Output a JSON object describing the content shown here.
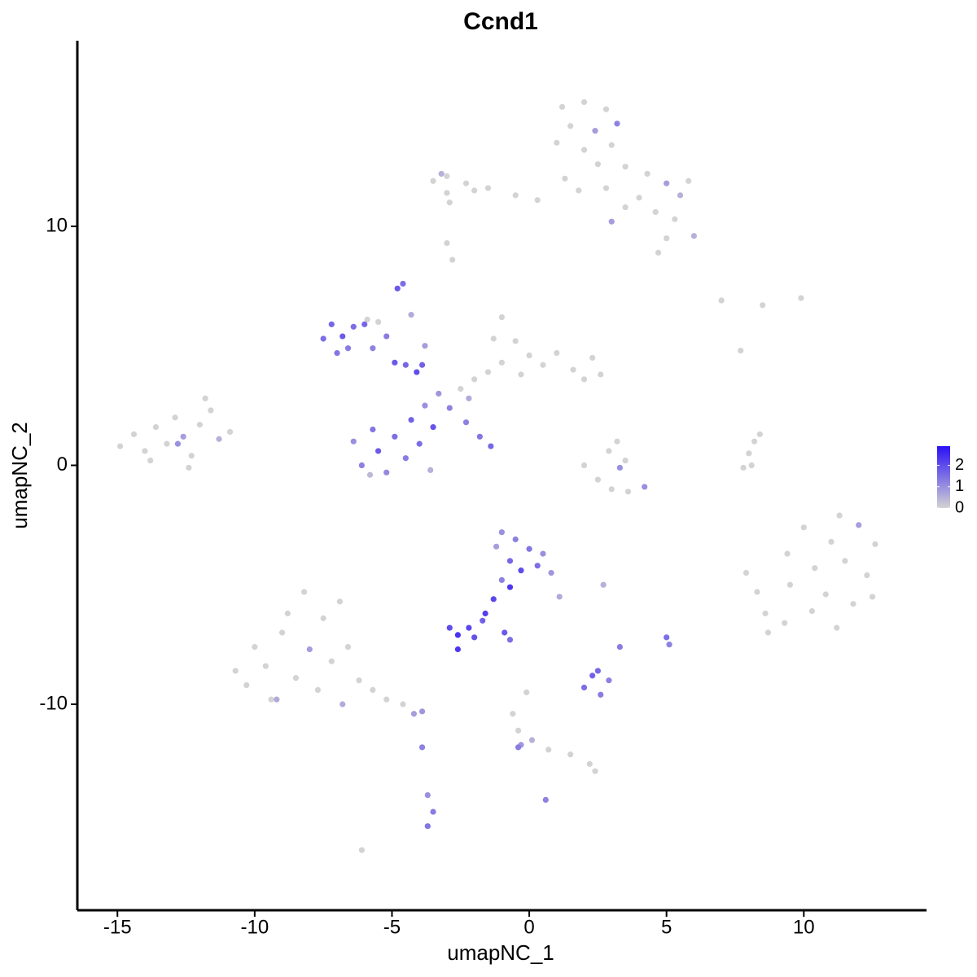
{
  "chart_data": {
    "type": "scatter",
    "title": "Ccnd1",
    "x_label": "umapNC_1",
    "y_label": "umapNC_2",
    "xlim": [
      -16.46,
      14.47
    ],
    "ylim": [
      -18.62,
      17.77
    ],
    "xticks": [
      -15,
      -10,
      -5,
      0,
      5,
      10
    ],
    "yticks": [
      -10,
      0,
      10
    ],
    "grid": false,
    "color_low": "#d3d3d3",
    "color_high": "#2b10f6",
    "color_limits": [
      0,
      2.9
    ],
    "color_ticks": [
      0,
      1,
      2
    ],
    "x": [
      1.2,
      2.0,
      2.8,
      1.5,
      2.4,
      3.2,
      1.0,
      2.0,
      3.0,
      2.5,
      3.5,
      4.3,
      5.0,
      5.8,
      1.3,
      1.8,
      2.8,
      4.0,
      5.5,
      4.6,
      5.3,
      6.0,
      5.0,
      4.7,
      3.0,
      3.5,
      0.3,
      -0.5,
      -1.5,
      -2.3,
      -3.0,
      -3.5,
      -3.0,
      -2.0,
      -3.2,
      -2.9,
      -3.0,
      -2.8,
      -14.9,
      -14.4,
      -14.0,
      -13.6,
      -13.2,
      -12.9,
      -12.6,
      -12.3,
      -12.0,
      -11.6,
      -11.8,
      -11.3,
      -10.9,
      -12.8,
      -13.8,
      -12.4,
      -7.5,
      -7.2,
      -6.8,
      -7.0,
      -6.6,
      -6.4,
      -6.0,
      -5.7,
      -5.2,
      -4.9,
      -4.5,
      -4.1,
      -3.9,
      -5.9,
      -5.5,
      -4.8,
      -4.6,
      -4.3,
      -3.8,
      -6.4,
      -6.1,
      -5.7,
      -5.5,
      -5.2,
      -4.9,
      -4.5,
      -4.3,
      -4.0,
      -3.8,
      -3.5,
      -3.3,
      -2.9,
      -3.6,
      -5.8,
      -2.3,
      -1.8,
      -1.4,
      -2.5,
      -2.0,
      -1.5,
      -1.0,
      -1.3,
      -1.0,
      -0.5,
      0.0,
      0.5,
      1.0,
      1.6,
      2.3,
      2.6,
      2.0,
      -0.3,
      -2.2,
      2.0,
      2.5,
      3.0,
      3.6,
      4.2,
      2.9,
      3.2,
      3.5,
      3.3,
      7.8,
      8.0,
      8.2,
      8.4,
      8.1,
      7.0,
      8.5,
      9.9,
      7.7,
      7.9,
      8.3,
      8.6,
      8.7,
      9.3,
      9.5,
      9.4,
      10.0,
      10.4,
      10.3,
      10.8,
      11.0,
      11.2,
      11.5,
      11.8,
      12.0,
      12.3,
      12.6,
      12.5,
      11.3,
      -10.7,
      -10.3,
      -10.0,
      -9.6,
      -9.4,
      -9.0,
      -8.8,
      -8.5,
      -8.2,
      -8.0,
      -7.7,
      -7.5,
      -7.2,
      -6.9,
      -6.8,
      -6.6,
      -6.2,
      -5.7,
      -5.2,
      -4.6,
      -4.2,
      -3.9,
      -3.9,
      -9.2,
      -1.2,
      -1.0,
      -0.5,
      -0.7,
      -0.3,
      0.0,
      0.3,
      0.5,
      0.8,
      1.1,
      -1.0,
      -0.7,
      -1.3,
      -1.6,
      -1.7,
      -2.9,
      -2.6,
      -2.2,
      -2.0,
      -2.6,
      -0.9,
      -0.7,
      2.7,
      2.0,
      2.3,
      2.6,
      2.9,
      2.5,
      3.3,
      5.0,
      5.1,
      -0.1,
      -0.6,
      -0.4,
      -0.3,
      0.1,
      0.7,
      1.5,
      2.2,
      2.4,
      -3.7,
      -3.5,
      -3.7,
      -6.1,
      0.6,
      -0.4
    ],
    "y": [
      15.0,
      15.2,
      14.9,
      14.2,
      14.0,
      14.3,
      13.5,
      13.2,
      13.4,
      12.6,
      12.5,
      12.2,
      11.8,
      11.9,
      12.0,
      11.5,
      11.6,
      11.2,
      11.3,
      10.6,
      10.3,
      9.6,
      9.5,
      8.9,
      10.2,
      10.8,
      11.1,
      11.3,
      11.6,
      11.8,
      12.1,
      11.9,
      11.4,
      11.5,
      12.2,
      11.0,
      9.3,
      8.6,
      0.8,
      1.3,
      0.6,
      1.6,
      0.9,
      2.0,
      1.2,
      0.4,
      1.7,
      2.3,
      2.8,
      1.1,
      1.4,
      0.9,
      0.2,
      -0.1,
      5.3,
      5.9,
      5.4,
      4.7,
      4.9,
      5.8,
      5.9,
      4.9,
      5.4,
      4.3,
      4.2,
      3.9,
      4.2,
      6.1,
      6.0,
      7.4,
      7.6,
      6.3,
      5.0,
      1.0,
      0.0,
      1.5,
      0.6,
      -0.3,
      1.2,
      0.3,
      1.9,
      0.9,
      2.5,
      1.6,
      3.0,
      2.4,
      -0.2,
      -0.4,
      1.8,
      1.2,
      0.8,
      3.2,
      3.6,
      3.9,
      4.3,
      5.3,
      6.2,
      5.2,
      4.6,
      4.2,
      4.7,
      4.0,
      4.5,
      3.8,
      3.6,
      3.8,
      2.8,
      0.0,
      -0.6,
      -1.0,
      -1.1,
      -0.9,
      0.6,
      1.0,
      0.2,
      -0.1,
      -0.1,
      0.5,
      1.0,
      1.3,
      0.0,
      6.9,
      6.7,
      7.0,
      4.8,
      -4.5,
      -5.3,
      -6.2,
      -7.0,
      -6.6,
      -5.0,
      -3.7,
      -2.6,
      -4.3,
      -6.1,
      -5.4,
      -3.2,
      -6.8,
      -4.0,
      -5.8,
      -2.5,
      -4.6,
      -3.3,
      -5.5,
      -2.1,
      -8.6,
      -9.2,
      -7.6,
      -8.4,
      -9.8,
      -7.0,
      -6.2,
      -8.9,
      -5.3,
      -7.7,
      -9.4,
      -6.4,
      -8.2,
      -5.7,
      -10.0,
      -7.6,
      -9.0,
      -9.4,
      -9.8,
      -10.0,
      -10.4,
      -10.3,
      -11.8,
      -9.8,
      -3.4,
      -2.8,
      -3.1,
      -4.0,
      -4.4,
      -3.5,
      -4.2,
      -3.7,
      -4.5,
      -5.5,
      -4.8,
      -5.1,
      -5.6,
      -6.2,
      -6.5,
      -6.8,
      -7.1,
      -6.8,
      -7.2,
      -7.7,
      -7.0,
      -7.3,
      -5.0,
      -9.3,
      -8.8,
      -9.6,
      -9.0,
      -8.6,
      -7.6,
      -7.2,
      -7.5,
      -9.5,
      -10.4,
      -11.1,
      -11.7,
      -11.5,
      -11.9,
      -12.1,
      -12.5,
      -12.8,
      -13.8,
      -14.5,
      -15.1,
      -16.1,
      -14.0,
      -11.8
    ],
    "expression": [
      0,
      0,
      0,
      0,
      0.8,
      1.2,
      0,
      0,
      0,
      0,
      0,
      0,
      0.8,
      0,
      0,
      0,
      0,
      0,
      0.5,
      0,
      0,
      0.5,
      0,
      0,
      0.8,
      0,
      0,
      0,
      0,
      0,
      0,
      0,
      0,
      0,
      0.5,
      0,
      0,
      0,
      0,
      0,
      0,
      0,
      0,
      0,
      0.8,
      0,
      0,
      0,
      0,
      0.5,
      0,
      1.0,
      0,
      0,
      1.5,
      1.6,
      1.8,
      1.4,
      1.3,
      1.5,
      1.6,
      1.2,
      1.3,
      1.8,
      1.6,
      2.0,
      1.7,
      0,
      0,
      1.8,
      1.5,
      0.6,
      0.8,
      1.0,
      1.2,
      1.4,
      1.8,
      1.1,
      1.5,
      1.3,
      1.7,
      1.5,
      1.0,
      1.9,
      0.9,
      1.2,
      0.5,
      0.4,
      1.2,
      1.4,
      1.6,
      0,
      0,
      0,
      0,
      0,
      0,
      0,
      0,
      0,
      0,
      0,
      0,
      0,
      0,
      0,
      0.6,
      0,
      0,
      0,
      0,
      1.0,
      0,
      0,
      0,
      1.0,
      0,
      0,
      0,
      0,
      0,
      0,
      0,
      0,
      0,
      0,
      0,
      0,
      0,
      0,
      0,
      0,
      0,
      0,
      0,
      0,
      0,
      0,
      0,
      0,
      0.8,
      0,
      0,
      0,
      0,
      0,
      0,
      0,
      0,
      0,
      0,
      0,
      0,
      0,
      0.8,
      0,
      0,
      0,
      0,
      0.6,
      0,
      0,
      0,
      0,
      0,
      0.8,
      0.9,
      1.2,
      0.6,
      0.8,
      1.0,
      1.2,
      1.6,
      2.0,
      1.4,
      1.5,
      1.0,
      0.9,
      0.6,
      1.2,
      2.3,
      2.1,
      2.2,
      1.7,
      2.0,
      2.4,
      2.1,
      1.9,
      2.3,
      1.8,
      1.5,
      0.5,
      1.5,
      1.7,
      1.3,
      1.2,
      1.6,
      1.3,
      1.5,
      1.2,
      0,
      0,
      0,
      0.9,
      0.5,
      0,
      0,
      0,
      0,
      1.0,
      1.3,
      1.4,
      0,
      1.2,
      1.3
    ]
  }
}
